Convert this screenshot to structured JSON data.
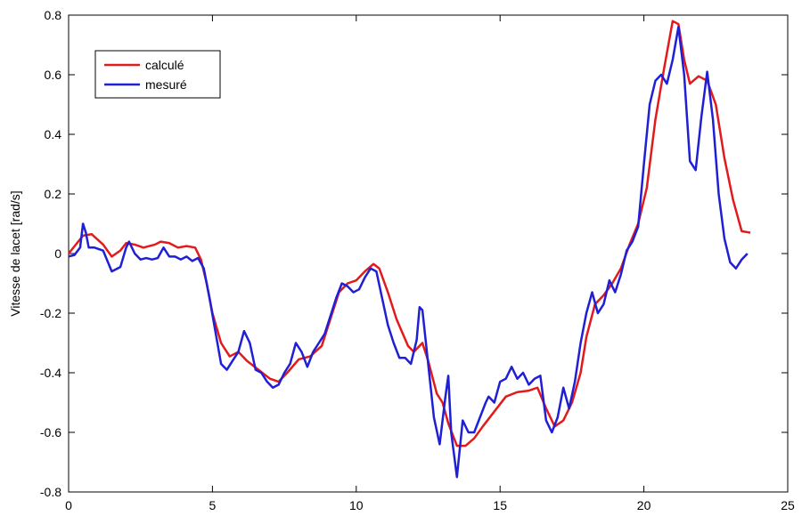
{
  "chart_data": {
    "type": "line",
    "ylabel": "Vitesse de lacet [rad/s]",
    "xlim": [
      0,
      25
    ],
    "xticks": [
      0,
      5,
      10,
      15,
      20,
      25
    ],
    "ylim": [
      -0.8,
      0.8
    ],
    "yticks": [
      -0.8,
      -0.6,
      -0.4,
      -0.2,
      0,
      0.2,
      0.4,
      0.6,
      0.8
    ],
    "grid": false,
    "legend": "upper left",
    "series": [
      {
        "name": "calculé",
        "color": "#e31a1c",
        "x": [
          0,
          0.5,
          0.8,
          1.2,
          1.5,
          1.8,
          2.0,
          2.3,
          2.6,
          3.0,
          3.2,
          3.5,
          3.8,
          4.1,
          4.4,
          4.6,
          4.8,
          5.0,
          5.3,
          5.6,
          5.9,
          6.2,
          6.6,
          7.0,
          7.3,
          7.6,
          8.0,
          8.4,
          8.8,
          9.1,
          9.4,
          9.7,
          10.0,
          10.3,
          10.6,
          10.8,
          11.1,
          11.4,
          11.8,
          12.0,
          12.3,
          12.5,
          12.8,
          13.0,
          13.2,
          13.5,
          13.8,
          14.1,
          14.4,
          14.8,
          15.2,
          15.6,
          16.0,
          16.3,
          16.6,
          16.9,
          17.2,
          17.5,
          17.8,
          18.0,
          18.3,
          18.6,
          18.9,
          19.2,
          19.5,
          19.8,
          20.1,
          20.4,
          20.7,
          21.0,
          21.2,
          21.4,
          21.6,
          21.9,
          22.2,
          22.5,
          22.8,
          23.1,
          23.4,
          23.7
        ],
        "values": [
          0,
          0.06,
          0.065,
          0.03,
          -0.01,
          0.01,
          0.035,
          0.03,
          0.02,
          0.03,
          0.04,
          0.035,
          0.02,
          0.025,
          0.02,
          -0.02,
          -0.1,
          -0.2,
          -0.3,
          -0.345,
          -0.33,
          -0.36,
          -0.39,
          -0.42,
          -0.43,
          -0.4,
          -0.355,
          -0.345,
          -0.31,
          -0.22,
          -0.13,
          -0.1,
          -0.09,
          -0.06,
          -0.035,
          -0.05,
          -0.13,
          -0.22,
          -0.31,
          -0.33,
          -0.3,
          -0.36,
          -0.47,
          -0.5,
          -0.57,
          -0.645,
          -0.645,
          -0.62,
          -0.58,
          -0.53,
          -0.48,
          -0.465,
          -0.46,
          -0.45,
          -0.52,
          -0.58,
          -0.56,
          -0.5,
          -0.4,
          -0.28,
          -0.17,
          -0.14,
          -0.1,
          -0.05,
          0.03,
          0.1,
          0.22,
          0.45,
          0.62,
          0.78,
          0.77,
          0.65,
          0.57,
          0.595,
          0.58,
          0.5,
          0.32,
          0.18,
          0.075,
          0.07
        ]
      },
      {
        "name": "mesuré",
        "color": "#1f1fd6",
        "x": [
          0,
          0.2,
          0.4,
          0.5,
          0.6,
          0.7,
          0.9,
          1.2,
          1.5,
          1.8,
          2.0,
          2.1,
          2.3,
          2.5,
          2.7,
          2.9,
          3.1,
          3.3,
          3.5,
          3.7,
          3.9,
          4.1,
          4.3,
          4.5,
          4.7,
          4.9,
          5.1,
          5.3,
          5.5,
          5.7,
          5.9,
          6.1,
          6.3,
          6.5,
          6.7,
          6.9,
          7.1,
          7.3,
          7.5,
          7.7,
          7.9,
          8.1,
          8.3,
          8.5,
          8.7,
          8.9,
          9.1,
          9.3,
          9.5,
          9.7,
          9.9,
          10.1,
          10.3,
          10.5,
          10.7,
          10.9,
          11.1,
          11.3,
          11.5,
          11.7,
          11.9,
          12.1,
          12.2,
          12.3,
          12.5,
          12.7,
          12.9,
          13.1,
          13.2,
          13.3,
          13.5,
          13.7,
          13.9,
          14.1,
          14.3,
          14.5,
          14.6,
          14.8,
          15.0,
          15.2,
          15.4,
          15.6,
          15.8,
          16.0,
          16.2,
          16.4,
          16.6,
          16.8,
          17.0,
          17.2,
          17.4,
          17.6,
          17.8,
          18.0,
          18.2,
          18.4,
          18.6,
          18.8,
          19.0,
          19.2,
          19.4,
          19.6,
          19.8,
          20.0,
          20.2,
          20.4,
          20.6,
          20.8,
          21.0,
          21.2,
          21.4,
          21.6,
          21.8,
          22.0,
          22.2,
          22.4,
          22.6,
          22.8,
          23.0,
          23.2,
          23.4,
          23.6
        ],
        "values": [
          -0.01,
          -0.005,
          0.02,
          0.1,
          0.07,
          0.02,
          0.02,
          0.01,
          -0.06,
          -0.045,
          0.02,
          0.04,
          0.0,
          -0.02,
          -0.015,
          -0.02,
          -0.015,
          0.02,
          -0.01,
          -0.01,
          -0.02,
          -0.01,
          -0.025,
          -0.015,
          -0.05,
          -0.15,
          -0.26,
          -0.37,
          -0.39,
          -0.36,
          -0.33,
          -0.26,
          -0.3,
          -0.39,
          -0.4,
          -0.43,
          -0.45,
          -0.44,
          -0.4,
          -0.37,
          -0.3,
          -0.33,
          -0.38,
          -0.33,
          -0.3,
          -0.27,
          -0.21,
          -0.15,
          -0.1,
          -0.11,
          -0.13,
          -0.12,
          -0.08,
          -0.05,
          -0.06,
          -0.15,
          -0.24,
          -0.3,
          -0.35,
          -0.35,
          -0.37,
          -0.29,
          -0.18,
          -0.19,
          -0.37,
          -0.55,
          -0.64,
          -0.48,
          -0.41,
          -0.6,
          -0.75,
          -0.56,
          -0.6,
          -0.6,
          -0.55,
          -0.5,
          -0.48,
          -0.5,
          -0.43,
          -0.42,
          -0.38,
          -0.42,
          -0.4,
          -0.44,
          -0.42,
          -0.41,
          -0.56,
          -0.6,
          -0.55,
          -0.45,
          -0.52,
          -0.43,
          -0.3,
          -0.2,
          -0.13,
          -0.2,
          -0.17,
          -0.09,
          -0.13,
          -0.07,
          0.01,
          0.04,
          0.09,
          0.3,
          0.5,
          0.58,
          0.6,
          0.57,
          0.65,
          0.76,
          0.6,
          0.31,
          0.28,
          0.46,
          0.61,
          0.45,
          0.2,
          0.05,
          -0.03,
          -0.05,
          -0.02,
          0.0
        ]
      }
    ]
  }
}
